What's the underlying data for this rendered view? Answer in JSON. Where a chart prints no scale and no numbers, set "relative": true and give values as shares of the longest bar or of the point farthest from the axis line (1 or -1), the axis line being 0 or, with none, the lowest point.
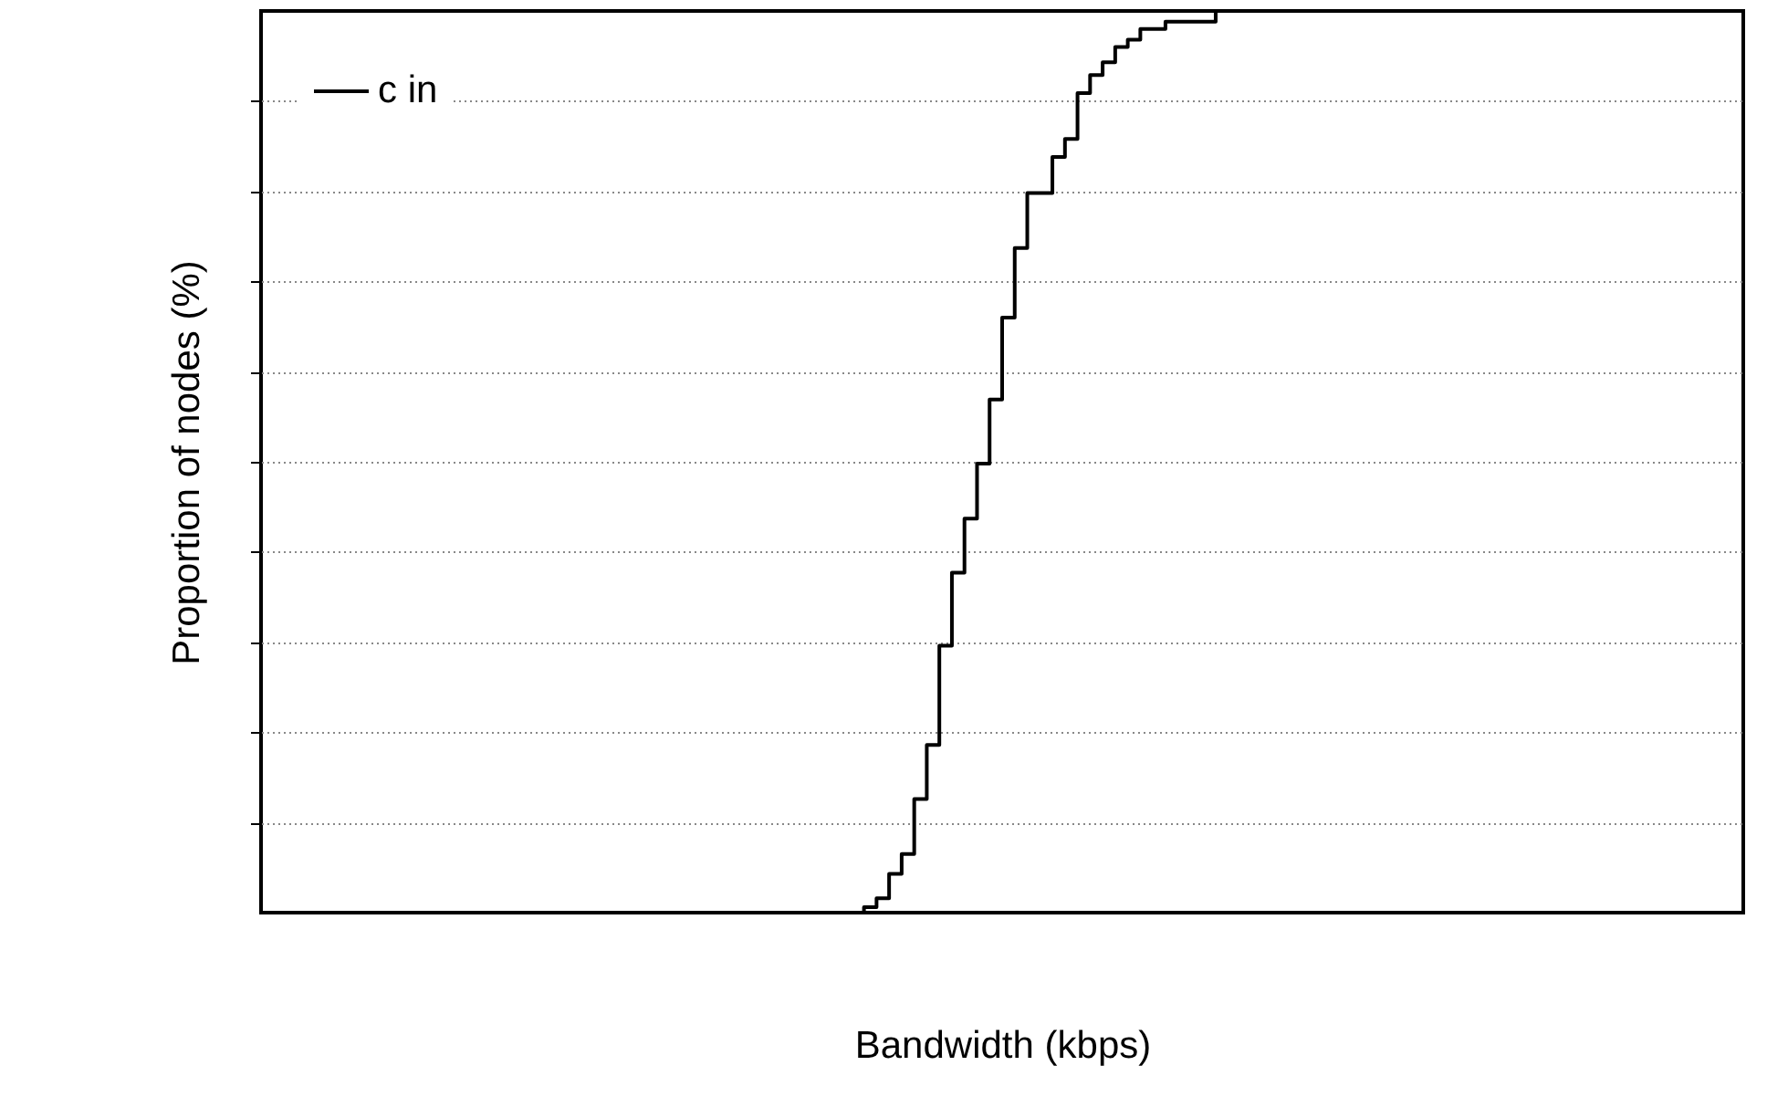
{
  "chart_data": {
    "type": "step",
    "relative": true,
    "xlabel": "Bandwidth (kbps)",
    "ylabel": "Proportion of nodes (%)",
    "categories": [
      null,
      null,
      null,
      null,
      null,
      null,
      null,
      null,
      null,
      null,
      null,
      null,
      null,
      null,
      null,
      null,
      null,
      null,
      null,
      null,
      null,
      null,
      null,
      null,
      null,
      null,
      null,
      null,
      null,
      null,
      null,
      null,
      null,
      null,
      null,
      null,
      null,
      null,
      null,
      null,
      null,
      null,
      null,
      null,
      null,
      null,
      null,
      null,
      null,
      null,
      null,
      null,
      null,
      null,
      null,
      null,
      null,
      null,
      null,
      null,
      null,
      null,
      null,
      null,
      null,
      null,
      null,
      null,
      null,
      null,
      null,
      null,
      null,
      null,
      null,
      null,
      null,
      null,
      null,
      null,
      null,
      null,
      null,
      null,
      null,
      null,
      null,
      null,
      null,
      null,
      null,
      null,
      null,
      null,
      null,
      null,
      null,
      null,
      null,
      null,
      null,
      null,
      null,
      null,
      null,
      null,
      null,
      null,
      null,
      null,
      null,
      null,
      null,
      null,
      null,
      null,
      null,
      null,
      null
    ],
    "grid": "y",
    "legend": "top left",
    "marker": "none",
    "line_style": "solid",
    "series": [
      {
        "name": "c in",
        "color": "#000000",
        "values": [
          0,
          0,
          0,
          0,
          0,
          0,
          0,
          0,
          0,
          0,
          0,
          0,
          0,
          0,
          0,
          0,
          0,
          0,
          0,
          0,
          0,
          0,
          0,
          0,
          0,
          0,
          0,
          0,
          0,
          0,
          0,
          0,
          0,
          0,
          0,
          0,
          0,
          0,
          0,
          0,
          0,
          0,
          0,
          0,
          0,
          0,
          0,
          0,
          0.006,
          0.016,
          0.043,
          0.065,
          0.126,
          0.186,
          0.296,
          0.377,
          0.437,
          0.498,
          0.569,
          0.66,
          0.737,
          0.798,
          0.798,
          0.838,
          0.858,
          0.909,
          0.929,
          0.943,
          0.96,
          0.968,
          0.98,
          0.98,
          0.988,
          0.988,
          0.988,
          0.988,
          1,
          1,
          1,
          1,
          1,
          1,
          1,
          1,
          1,
          1,
          1,
          1,
          1,
          1,
          1,
          1,
          1,
          1,
          1,
          1,
          1,
          1,
          1,
          1,
          1,
          1,
          1,
          1,
          1,
          1,
          1,
          1,
          1,
          1,
          1,
          1,
          1,
          1,
          1,
          1,
          1,
          1,
          1
        ]
      }
    ]
  }
}
